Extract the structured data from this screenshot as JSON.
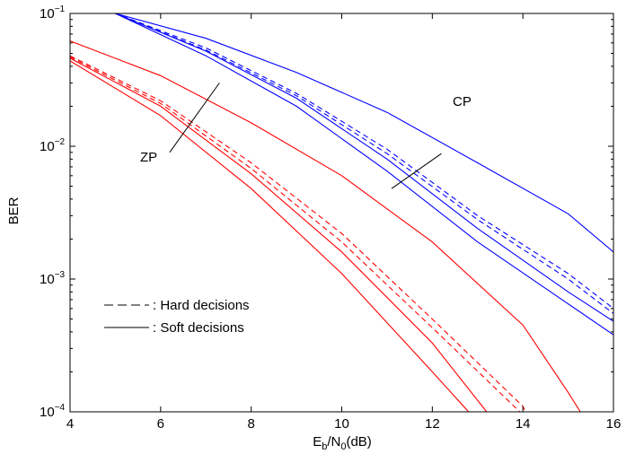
{
  "chart_data": {
    "type": "line",
    "title": "",
    "xlabel": {
      "base": "E",
      "sub1": "b",
      "mid": "/N",
      "sub2": "0",
      "tail": "(dB)"
    },
    "ylabel": "BER",
    "xlim": [
      4,
      16
    ],
    "ylim": [
      0.0001,
      0.1
    ],
    "yscale": "log",
    "grid": false,
    "xticks": [
      4,
      6,
      8,
      10,
      12,
      14,
      16
    ],
    "yticks": [
      {
        "value": 0.1,
        "base": "10",
        "exp": "−1"
      },
      {
        "value": 0.01,
        "base": "10",
        "exp": "−2"
      },
      {
        "value": 0.001,
        "base": "10",
        "exp": "−3"
      },
      {
        "value": 0.0001,
        "base": "10",
        "exp": "−4"
      }
    ],
    "colors": {
      "cp": "#0000ff",
      "zp": "#ff0000",
      "axis": "#000000"
    },
    "series": [
      {
        "group": "CP",
        "style": "solid",
        "color": "#0000ff",
        "points": [
          [
            4,
            0.13
          ],
          [
            5,
            0.1
          ],
          [
            7,
            0.065
          ],
          [
            9,
            0.036
          ],
          [
            11,
            0.018
          ],
          [
            13,
            0.0075
          ],
          [
            15,
            0.0031
          ],
          [
            16,
            0.0016
          ]
        ]
      },
      {
        "group": "CP",
        "style": "dashed",
        "color": "#0000ff",
        "points": [
          [
            4,
            0.12
          ],
          [
            5,
            0.1
          ],
          [
            7,
            0.055
          ],
          [
            9,
            0.025
          ],
          [
            11,
            0.0095
          ],
          [
            13,
            0.003
          ],
          [
            15,
            0.0011
          ],
          [
            16,
            0.0006
          ]
        ]
      },
      {
        "group": "CP",
        "style": "dashed",
        "color": "#0000ff",
        "points": [
          [
            4,
            0.12
          ],
          [
            5,
            0.1
          ],
          [
            7,
            0.053
          ],
          [
            9,
            0.024
          ],
          [
            11,
            0.0088
          ],
          [
            13,
            0.0028
          ],
          [
            15,
            0.001
          ],
          [
            16,
            0.00055
          ]
        ]
      },
      {
        "group": "CP",
        "style": "solid",
        "color": "#0000ff",
        "points": [
          [
            4,
            0.12
          ],
          [
            5,
            0.1
          ],
          [
            7,
            0.052
          ],
          [
            9,
            0.023
          ],
          [
            11,
            0.008
          ],
          [
            13,
            0.0024
          ],
          [
            15,
            0.0008
          ],
          [
            16,
            0.00048
          ]
        ]
      },
      {
        "group": "CP",
        "style": "solid",
        "color": "#0000ff",
        "points": [
          [
            4,
            0.12
          ],
          [
            5,
            0.1
          ],
          [
            7,
            0.048
          ],
          [
            9,
            0.02
          ],
          [
            11,
            0.0065
          ],
          [
            13,
            0.0019
          ],
          [
            15,
            0.00065
          ],
          [
            16,
            0.00038
          ]
        ]
      },
      {
        "group": "ZP",
        "style": "solid",
        "color": "#ff0000",
        "points": [
          [
            4,
            0.062
          ],
          [
            6,
            0.034
          ],
          [
            8,
            0.015
          ],
          [
            10,
            0.006
          ],
          [
            12,
            0.0019
          ],
          [
            14,
            0.00045
          ],
          [
            15,
            0.00014
          ],
          [
            16,
            4e-05
          ]
        ]
      },
      {
        "group": "ZP",
        "style": "dashed",
        "color": "#ff0000",
        "points": [
          [
            4,
            0.048
          ],
          [
            6,
            0.022
          ],
          [
            8,
            0.0075
          ],
          [
            10,
            0.0022
          ],
          [
            12,
            0.0005
          ],
          [
            14,
            0.00011
          ],
          [
            14.5,
            5e-05
          ]
        ]
      },
      {
        "group": "ZP",
        "style": "dashed",
        "color": "#ff0000",
        "points": [
          [
            4,
            0.047
          ],
          [
            6,
            0.021
          ],
          [
            8,
            0.0068
          ],
          [
            10,
            0.0019
          ],
          [
            12,
            0.00043
          ],
          [
            14,
            9.5e-05
          ],
          [
            14.3,
            7e-05
          ]
        ]
      },
      {
        "group": "ZP",
        "style": "solid",
        "color": "#ff0000",
        "points": [
          [
            4,
            0.046
          ],
          [
            6,
            0.02
          ],
          [
            8,
            0.0062
          ],
          [
            10,
            0.0016
          ],
          [
            12,
            0.00033
          ],
          [
            13.2,
            0.0001
          ],
          [
            13.6,
            6e-05
          ]
        ]
      },
      {
        "group": "ZP",
        "style": "solid",
        "color": "#ff0000",
        "points": [
          [
            4,
            0.044
          ],
          [
            6,
            0.017
          ],
          [
            8,
            0.0048
          ],
          [
            10,
            0.0011
          ],
          [
            12,
            0.0002
          ],
          [
            12.8,
            0.0001
          ],
          [
            13.2,
            6e-05
          ]
        ]
      }
    ],
    "annotations": [
      {
        "text": "CP",
        "line": {
          "from": [
            11.1,
            0.0048
          ],
          "to": [
            12.2,
            0.0088
          ]
        }
      },
      {
        "text": "ZP",
        "line": {
          "from": [
            6.2,
            0.009
          ],
          "to": [
            7.3,
            0.03
          ]
        }
      }
    ],
    "legend": {
      "placement": "bottom-left",
      "items": [
        {
          "style": "dashed",
          "label": ": Hard decisions"
        },
        {
          "style": "solid",
          "label": ": Soft decisions"
        }
      ]
    }
  }
}
